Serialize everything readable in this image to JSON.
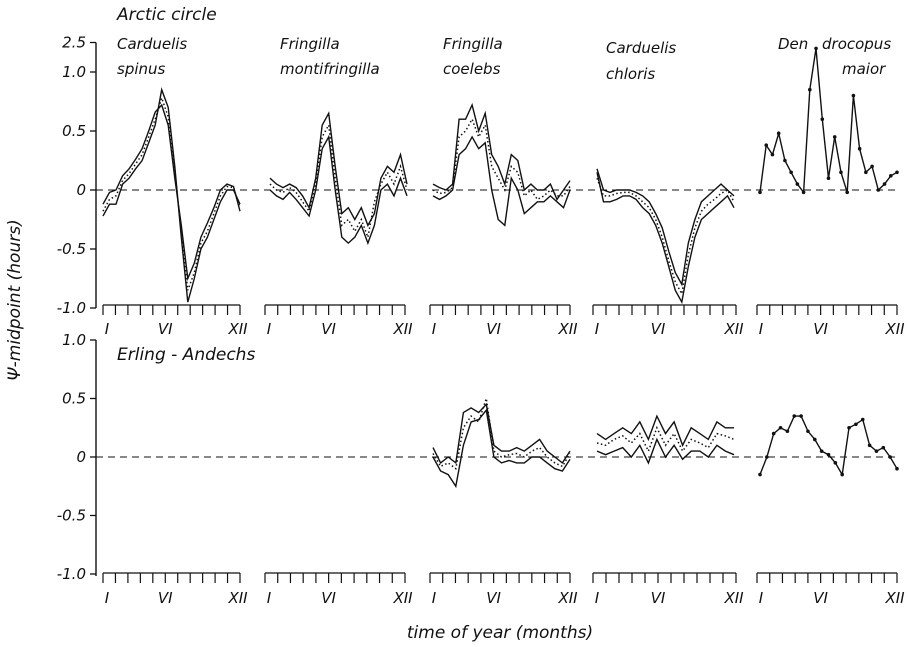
{
  "figure": {
    "ylabel": "Ψ-midpoint (hours)",
    "xlabel": "time of year (months)",
    "ink_color": "#111111"
  },
  "panels": [
    {
      "row_title": "Arctic circle",
      "yticks": [
        "2.5",
        "1.0",
        "0.5",
        "0",
        "-0.5",
        "-1.0"
      ],
      "species": [
        {
          "name": [
            "Carduelis",
            "spinus"
          ],
          "months": [
            "I",
            "VI",
            "XII"
          ]
        },
        {
          "name": [
            "Fringilla",
            "montifringilla"
          ],
          "months": [
            "I",
            "VI",
            "XII"
          ]
        },
        {
          "name": [
            "Fringilla",
            "coelebs"
          ],
          "months": [
            "I",
            "VI",
            "XII"
          ]
        },
        {
          "name": [
            "Carduelis",
            "chloris"
          ],
          "months": [
            "I",
            "VI",
            "XII"
          ]
        },
        {
          "name": [
            "Den",
            "drocopus",
            "maior"
          ],
          "months": [
            "I",
            "VI",
            "XII"
          ]
        }
      ]
    },
    {
      "row_title": "Erling - Andechs",
      "yticks": [
        "1.0",
        "0.5",
        "0",
        "-0.5",
        "-1.0"
      ],
      "species": [
        {
          "months": [
            "I",
            "VI",
            "XII"
          ]
        },
        {
          "months": [
            "I",
            "VI",
            "XII"
          ]
        },
        {
          "months": [
            "I",
            "VI",
            "XII"
          ]
        },
        {
          "months": [
            "I",
            "VI",
            "XII"
          ]
        },
        {
          "months": [
            "I",
            "VI",
            "XII"
          ]
        }
      ]
    }
  ],
  "chart_data": [
    {
      "type": "line",
      "panel": "Arctic circle",
      "ylim": [
        -1.0,
        1.25
      ],
      "ybreak": "upper limit labeled 2.5",
      "subplots": [
        {
          "species": "Carduelis spinus",
          "series": [
            {
              "style": "solid",
              "values": [
                -0.22,
                -0.12,
                -0.12,
                0.05,
                0.1,
                0.18,
                0.25,
                0.4,
                0.55,
                0.85,
                0.7,
                0.2,
                -0.4,
                -0.95,
                -0.75,
                -0.5,
                -0.4,
                -0.25,
                -0.1,
                0.0,
                0.0,
                -0.12
              ]
            },
            {
              "style": "dotted",
              "values": [
                -0.18,
                -0.08,
                -0.05,
                0.08,
                0.14,
                0.22,
                0.3,
                0.45,
                0.6,
                0.78,
                0.62,
                0.15,
                -0.35,
                -0.85,
                -0.7,
                -0.45,
                -0.35,
                -0.2,
                -0.05,
                0.03,
                0.02,
                -0.15
              ]
            },
            {
              "style": "solid",
              "values": [
                -0.12,
                -0.02,
                0.0,
                0.12,
                0.18,
                0.26,
                0.35,
                0.5,
                0.66,
                0.72,
                0.55,
                0.1,
                -0.3,
                -0.75,
                -0.62,
                -0.4,
                -0.28,
                -0.15,
                0.0,
                0.05,
                0.03,
                -0.18
              ]
            }
          ]
        },
        {
          "species": "Fringilla montifringilla",
          "series": [
            {
              "style": "solid",
              "values": [
                0.1,
                0.05,
                0.02,
                0.05,
                0.02,
                -0.05,
                -0.15,
                0.1,
                0.55,
                0.65,
                0.2,
                -0.2,
                -0.15,
                -0.25,
                -0.15,
                -0.3,
                -0.2,
                0.1,
                0.2,
                0.15,
                0.3,
                0.05
              ]
            },
            {
              "style": "dotted",
              "values": [
                0.05,
                0.0,
                -0.02,
                0.02,
                -0.02,
                -0.1,
                -0.18,
                0.05,
                0.45,
                0.55,
                0.1,
                -0.3,
                -0.25,
                -0.35,
                -0.25,
                -0.4,
                -0.1,
                0.05,
                0.15,
                0.05,
                0.2,
                0.0
              ]
            },
            {
              "style": "solid",
              "values": [
                0.0,
                -0.05,
                -0.08,
                -0.02,
                -0.08,
                -0.15,
                -0.22,
                0.0,
                0.35,
                0.45,
                0.0,
                -0.4,
                -0.45,
                -0.4,
                -0.3,
                -0.45,
                -0.3,
                0.0,
                0.05,
                -0.05,
                0.1,
                -0.05
              ]
            }
          ]
        },
        {
          "species": "Fringilla coelebs",
          "series": [
            {
              "style": "solid",
              "values": [
                0.05,
                0.02,
                0.0,
                0.05,
                0.6,
                0.6,
                0.72,
                0.5,
                0.65,
                0.3,
                0.2,
                0.05,
                0.3,
                0.25,
                0.0,
                0.05,
                0.0,
                0.0,
                0.05,
                -0.08,
                0.0,
                0.08
              ]
            },
            {
              "style": "dotted",
              "values": [
                0.0,
                -0.03,
                -0.02,
                0.02,
                0.45,
                0.5,
                0.6,
                0.45,
                0.55,
                0.2,
                0.1,
                0.0,
                0.2,
                0.15,
                -0.05,
                0.0,
                -0.08,
                -0.05,
                0.0,
                -0.05,
                -0.05,
                0.03
              ]
            },
            {
              "style": "solid",
              "values": [
                -0.05,
                -0.08,
                -0.05,
                0.0,
                0.3,
                0.35,
                0.45,
                0.35,
                0.4,
                0.0,
                -0.25,
                -0.3,
                0.1,
                0.0,
                -0.2,
                -0.15,
                -0.1,
                -0.1,
                -0.05,
                -0.1,
                -0.15,
                0.0
              ]
            }
          ]
        },
        {
          "species": "Carduelis chloris",
          "series": [
            {
              "style": "solid",
              "values": [
                0.15,
                -0.1,
                -0.1,
                -0.08,
                -0.05,
                -0.05,
                -0.08,
                -0.15,
                -0.2,
                -0.3,
                -0.45,
                -0.65,
                -0.85,
                -0.95,
                -0.65,
                -0.4,
                -0.25,
                -0.2,
                -0.15,
                -0.1,
                -0.05,
                -0.15
              ]
            },
            {
              "style": "dotted",
              "values": [
                0.1,
                -0.05,
                -0.05,
                -0.03,
                -0.02,
                -0.02,
                -0.05,
                -0.1,
                -0.15,
                -0.25,
                -0.4,
                -0.6,
                -0.78,
                -0.88,
                -0.55,
                -0.32,
                -0.18,
                -0.12,
                -0.08,
                -0.03,
                0.0,
                -0.1
              ]
            },
            {
              "style": "solid",
              "values": [
                0.18,
                0.0,
                -0.02,
                0.0,
                0.0,
                0.0,
                -0.02,
                -0.05,
                -0.1,
                -0.2,
                -0.32,
                -0.52,
                -0.7,
                -0.8,
                -0.45,
                -0.25,
                -0.1,
                -0.05,
                0.0,
                0.05,
                0.0,
                -0.05
              ]
            }
          ]
        },
        {
          "species": "Dendrocopus maior",
          "series": [
            {
              "style": "dotted-solid",
              "values": [
                -0.02,
                0.38,
                0.3,
                0.48,
                0.25,
                0.15,
                0.05,
                -0.02,
                0.85,
                1.2,
                0.6,
                0.1,
                0.45,
                0.15,
                -0.02,
                0.8,
                0.35,
                0.15,
                0.2,
                0.0,
                0.05,
                0.12,
                0.15
              ]
            }
          ]
        }
      ]
    },
    {
      "type": "line",
      "panel": "Erling - Andechs",
      "ylim": [
        -1.0,
        1.0
      ],
      "subplots": [
        {
          "species": "Carduelis spinus",
          "series": []
        },
        {
          "species": "Fringilla montifringilla",
          "series": []
        },
        {
          "species": "Fringilla coelebs",
          "series": [
            {
              "style": "solid",
              "values": [
                0.08,
                -0.05,
                0.0,
                -0.05,
                0.38,
                0.42,
                0.38,
                0.45,
                0.1,
                0.05,
                0.05,
                0.08,
                0.05,
                0.1,
                0.15,
                0.05,
                0.0,
                -0.05,
                0.05
              ]
            },
            {
              "style": "dotted",
              "values": [
                0.03,
                -0.08,
                -0.05,
                -0.1,
                0.25,
                0.35,
                0.3,
                0.5,
                0.05,
                0.0,
                0.02,
                0.03,
                0.0,
                0.05,
                0.08,
                0.0,
                -0.05,
                -0.08,
                0.03
              ]
            },
            {
              "style": "solid",
              "values": [
                0.0,
                -0.12,
                -0.15,
                -0.25,
                0.1,
                0.3,
                0.32,
                0.4,
                0.0,
                -0.05,
                -0.03,
                -0.05,
                -0.05,
                0.0,
                0.0,
                -0.05,
                -0.1,
                -0.12,
                -0.02
              ]
            }
          ]
        },
        {
          "species": "Carduelis chloris",
          "series": [
            {
              "style": "solid",
              "values": [
                0.2,
                0.15,
                0.2,
                0.25,
                0.2,
                0.3,
                0.15,
                0.35,
                0.2,
                0.3,
                0.1,
                0.25,
                0.2,
                0.15,
                0.3,
                0.25,
                0.25
              ]
            },
            {
              "style": "dotted",
              "values": [
                0.12,
                0.1,
                0.15,
                0.18,
                0.12,
                0.2,
                0.05,
                0.25,
                0.1,
                0.2,
                0.05,
                0.15,
                0.12,
                0.08,
                0.2,
                0.18,
                0.15
              ]
            },
            {
              "style": "solid",
              "values": [
                0.05,
                0.02,
                0.05,
                0.08,
                0.0,
                0.1,
                -0.05,
                0.15,
                0.0,
                0.1,
                -0.02,
                0.05,
                0.05,
                0.0,
                0.1,
                0.05,
                0.02
              ]
            }
          ]
        },
        {
          "species": "Dendrocopus maior",
          "series": [
            {
              "style": "dotted-solid",
              "values": [
                -0.15,
                0.0,
                0.2,
                0.25,
                0.22,
                0.35,
                0.35,
                0.22,
                0.15,
                0.05,
                0.02,
                -0.05,
                -0.15,
                0.25,
                0.28,
                0.32,
                0.1,
                0.05,
                0.08,
                0.0,
                -0.1
              ]
            }
          ]
        }
      ]
    }
  ]
}
